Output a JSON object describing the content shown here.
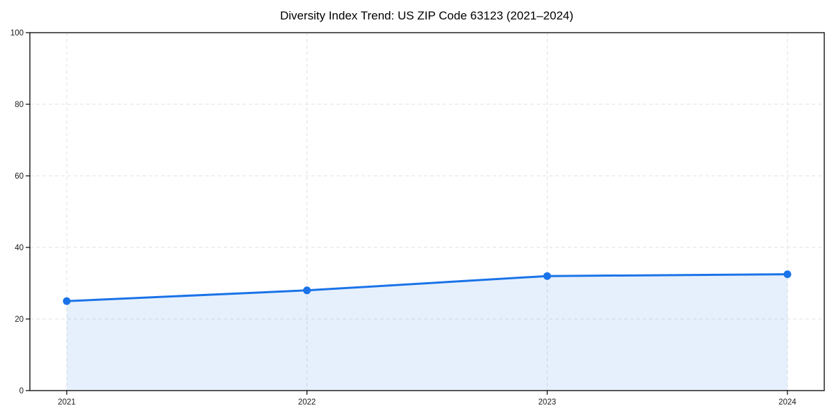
{
  "page": {
    "background": "#ffffff"
  },
  "chart_data": {
    "type": "area",
    "title": "Diversity Index Trend: US ZIP Code 63123 (2021–2024)",
    "categories": [
      "2021",
      "2022",
      "2023",
      "2024"
    ],
    "series": [
      {
        "name": "Diversity Index",
        "values": [
          25,
          28,
          32,
          32.5
        ]
      }
    ],
    "xlabel": "",
    "ylabel": "",
    "ylim": [
      0,
      100
    ],
    "yticks": [
      0,
      20,
      40,
      60,
      80,
      100
    ],
    "grid": true,
    "grid_style": "dashed",
    "legend_position": "none",
    "colors": {
      "line": "#1a73e8",
      "marker": "#1a73e8",
      "fill": "#1a73e8",
      "fill_opacity": 0.11,
      "grid": "#e0e0e0",
      "axis": "#000000",
      "tick_text": "#1a1a1a"
    }
  }
}
